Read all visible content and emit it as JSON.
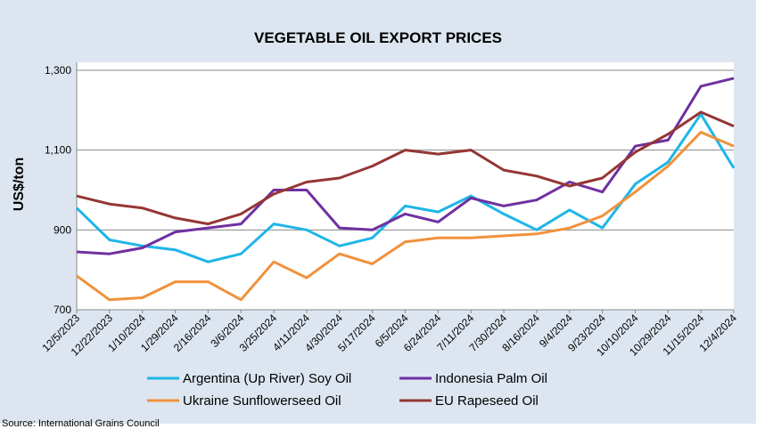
{
  "source_note": "Source: International Grains Council",
  "chart_data": {
    "type": "line",
    "title": "VEGETABLE OIL EXPORT PRICES",
    "ylabel": "US$/ton",
    "xlabel": "",
    "ylim": [
      700,
      1320
    ],
    "yticks": [
      700,
      900,
      1100,
      1300
    ],
    "ytick_labels": [
      "700",
      "900",
      "1,100",
      "1,300"
    ],
    "grid": "horizontal",
    "legend_position": "bottom",
    "x_tick_labels": [
      "12/5/2023",
      "12/22/2023",
      "1/10/2024",
      "1/29/2024",
      "2/16/2024",
      "3/6/2024",
      "3/25/2024",
      "4/11/2024",
      "4/30/2024",
      "5/17/2024",
      "6/5/2024",
      "6/24/2024",
      "7/11/2024",
      "7/30/2024",
      "8/16/2024",
      "9/4/2024",
      "9/23/2024",
      "10/10/2024",
      "10/29/2024",
      "11/15/2024",
      "12/4/2024"
    ],
    "x": [
      "12/5/2023",
      "12/22/2023",
      "1/10/2024",
      "1/29/2024",
      "2/16/2024",
      "3/6/2024",
      "3/25/2024",
      "4/11/2024",
      "4/30/2024",
      "5/17/2024",
      "6/5/2024",
      "6/24/2024",
      "7/11/2024",
      "7/30/2024",
      "8/16/2024",
      "9/4/2024",
      "9/23/2024",
      "10/10/2024",
      "10/29/2024",
      "11/15/2024",
      "12/4/2024"
    ],
    "series": [
      {
        "name": "Argentina (Up River) Soy Oil",
        "color": "#1fb5e8",
        "values": [
          955,
          875,
          860,
          850,
          820,
          840,
          915,
          900,
          860,
          880,
          960,
          945,
          985,
          940,
          900,
          950,
          905,
          1015,
          1070,
          1190,
          1055
        ]
      },
      {
        "name": "Indonesia Palm Oil",
        "color": "#7030a0",
        "values": [
          845,
          840,
          855,
          895,
          905,
          915,
          1000,
          1000,
          905,
          900,
          940,
          920,
          980,
          960,
          975,
          1020,
          995,
          1110,
          1125,
          1260,
          1280
        ]
      },
      {
        "name": "Ukraine Sunflowerseed Oil",
        "color": "#f0913c",
        "values": [
          785,
          725,
          730,
          770,
          770,
          725,
          820,
          780,
          840,
          815,
          870,
          880,
          880,
          885,
          890,
          905,
          935,
          995,
          1060,
          1145,
          1110
        ]
      },
      {
        "name": "EU Rapeseed Oil",
        "color": "#943634",
        "values": [
          985,
          965,
          955,
          930,
          915,
          940,
          990,
          1020,
          1030,
          1060,
          1100,
          1090,
          1100,
          1050,
          1035,
          1010,
          1030,
          1095,
          1140,
          1195,
          1160
        ]
      }
    ]
  }
}
